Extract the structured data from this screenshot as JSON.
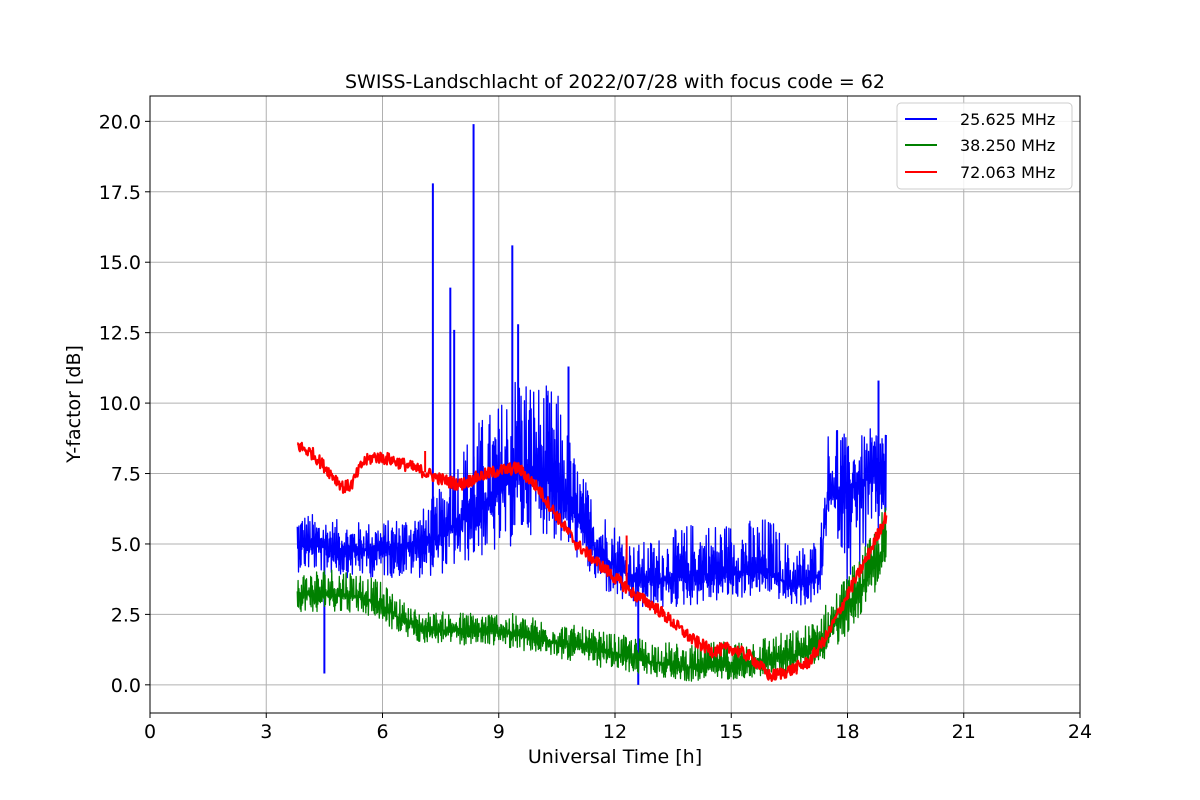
{
  "chart_data": {
    "type": "line",
    "title": "SWISS-Landschlacht of 2022/07/28 with focus code = 62",
    "xlabel": "Universal Time [h]",
    "ylabel": "Y-factor [dB]",
    "xlim": [
      0,
      24
    ],
    "ylim": [
      -1.0,
      20.9
    ],
    "xticks": [
      0,
      3,
      6,
      9,
      12,
      15,
      18,
      21,
      24
    ],
    "xtick_labels": [
      "0",
      "3",
      "6",
      "9",
      "12",
      "15",
      "18",
      "21",
      "24"
    ],
    "yticks": [
      0,
      2.5,
      5,
      7.5,
      10,
      12.5,
      15,
      17.5,
      20
    ],
    "ytick_labels": [
      "0.0",
      "2.5",
      "5.0",
      "7.5",
      "10.0",
      "12.5",
      "15.0",
      "17.5",
      "20.0"
    ],
    "grid": true,
    "legend_position": "top-right",
    "series": [
      {
        "name": "25.625 MHz",
        "color": "#0000ff",
        "x": [
          3.8,
          4.5,
          5.0,
          6.0,
          7.0,
          7.5,
          8.0,
          8.5,
          9.0,
          9.5,
          10.0,
          10.5,
          11.0,
          11.5,
          12.0,
          12.5,
          13.0,
          14.0,
          15.0,
          16.0,
          16.5,
          17.0,
          17.3,
          17.5,
          17.8,
          18.0,
          18.5,
          19.0
        ],
        "y": [
          5.0,
          4.9,
          4.8,
          4.8,
          5.0,
          5.3,
          5.8,
          6.2,
          6.8,
          7.5,
          7.5,
          7.0,
          6.0,
          4.8,
          4.2,
          3.8,
          3.7,
          3.9,
          4.0,
          4.0,
          3.5,
          3.6,
          4.0,
          7.0,
          6.5,
          7.0,
          7.3,
          7.6
        ],
        "y_low": [
          4.0,
          4.0,
          3.8,
          3.8,
          3.8,
          3.9,
          4.2,
          4.5,
          4.6,
          5.0,
          5.5,
          5.0,
          4.5,
          3.5,
          3.0,
          2.6,
          2.6,
          2.8,
          3.0,
          3.2,
          2.8,
          2.8,
          3.0,
          6.0,
          5.0,
          3.5,
          4.5,
          5.5
        ],
        "y_high": [
          6.2,
          6.0,
          5.8,
          5.8,
          6.2,
          7.0,
          8.5,
          9.5,
          10.0,
          11.5,
          10.8,
          10.5,
          8.0,
          6.5,
          5.8,
          5.0,
          5.2,
          5.8,
          5.8,
          6.0,
          5.0,
          5.0,
          5.5,
          9.0,
          10.0,
          8.5,
          9.0,
          9.5
        ],
        "spikes": [
          {
            "x": 4.5,
            "y": 0.4
          },
          {
            "x": 7.3,
            "y": 17.8
          },
          {
            "x": 7.75,
            "y": 14.1
          },
          {
            "x": 7.85,
            "y": 12.6
          },
          {
            "x": 8.35,
            "y": 19.9
          },
          {
            "x": 9.35,
            "y": 15.6
          },
          {
            "x": 9.5,
            "y": 12.8
          },
          {
            "x": 10.8,
            "y": 11.3
          },
          {
            "x": 12.6,
            "y": 0.0
          },
          {
            "x": 18.8,
            "y": 10.8
          }
        ]
      },
      {
        "name": "38.250 MHz",
        "color": "#008000",
        "x": [
          3.8,
          4.5,
          5.0,
          5.5,
          6.0,
          6.5,
          7.0,
          8.0,
          9.0,
          10.0,
          11.0,
          12.0,
          13.0,
          14.0,
          15.0,
          16.0,
          16.5,
          17.0,
          17.5,
          18.0,
          18.5,
          19.0
        ],
        "y": [
          3.2,
          3.2,
          3.2,
          3.1,
          2.8,
          2.3,
          2.0,
          1.9,
          1.9,
          1.6,
          1.4,
          1.1,
          0.8,
          0.6,
          0.7,
          0.9,
          1.0,
          1.2,
          1.8,
          2.8,
          3.8,
          5.0
        ],
        "y_low": [
          2.6,
          2.6,
          2.6,
          2.5,
          2.2,
          1.7,
          1.5,
          1.4,
          1.4,
          1.1,
          0.8,
          0.5,
          0.3,
          0.1,
          0.2,
          0.3,
          0.4,
          0.6,
          1.0,
          1.8,
          2.8,
          4.0
        ],
        "y_high": [
          4.0,
          4.2,
          4.2,
          4.0,
          3.6,
          3.0,
          2.6,
          2.6,
          2.6,
          2.4,
          2.1,
          1.8,
          1.6,
          1.4,
          1.6,
          1.8,
          1.9,
          2.2,
          3.0,
          4.0,
          5.0,
          6.5
        ]
      },
      {
        "name": "72.063 MHz",
        "color": "#ff0000",
        "x": [
          3.8,
          4.2,
          4.6,
          5.0,
          5.2,
          5.5,
          5.8,
          6.2,
          6.6,
          7.0,
          7.5,
          8.0,
          8.5,
          9.0,
          9.5,
          10.0,
          10.5,
          11.0,
          11.5,
          12.0,
          12.5,
          13.0,
          13.5,
          14.0,
          14.5,
          15.0,
          15.5,
          16.0,
          16.5,
          17.0,
          17.5,
          18.0,
          18.5,
          19.0
        ],
        "y": [
          8.5,
          8.2,
          7.6,
          7.0,
          7.1,
          7.9,
          8.1,
          8.0,
          7.8,
          7.6,
          7.3,
          7.1,
          7.4,
          7.6,
          7.7,
          7.0,
          6.0,
          5.0,
          4.4,
          3.8,
          3.2,
          2.8,
          2.2,
          1.6,
          1.2,
          1.3,
          1.0,
          0.3,
          0.5,
          0.8,
          1.8,
          3.2,
          4.5,
          6.0
        ],
        "spikes": [
          {
            "x": 7.1,
            "y": 8.3
          },
          {
            "x": 12.3,
            "y": 5.3
          }
        ]
      }
    ]
  }
}
